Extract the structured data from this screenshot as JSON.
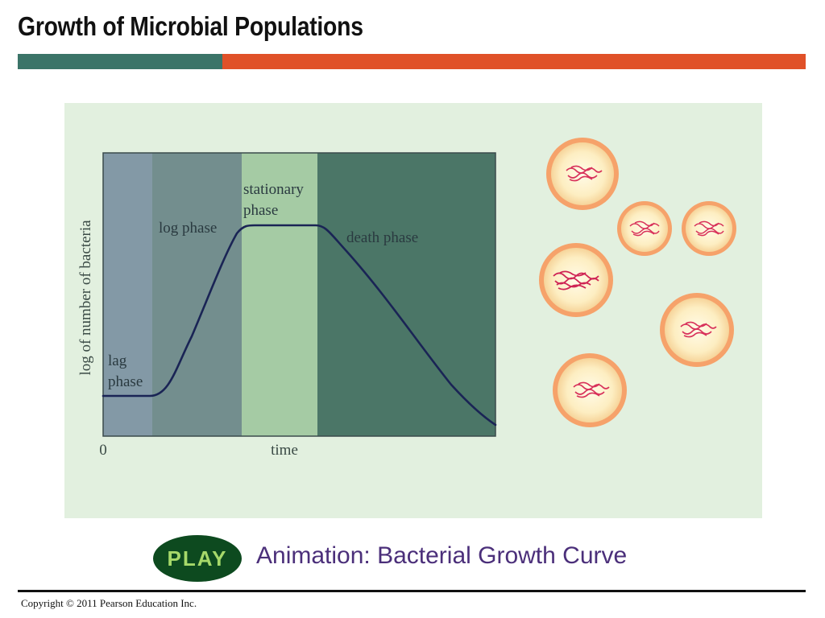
{
  "slide": {
    "title": "Growth of Microbial Populations",
    "animation_link": "Animation: Bacterial Growth Curve",
    "play_label": "PLAY",
    "copyright": "Copyright © 2011 Pearson Education Inc."
  },
  "colors": {
    "title_bar_teal": "#3b7468",
    "title_bar_orange": "#e05128",
    "panel_bg": "#e2f0df",
    "lag_region": "#8399a6",
    "log_region": "#738e8e",
    "stationary_region": "#a5cba4",
    "death_region": "#4b7667",
    "curve": "#1a2455",
    "play_bg": "#0d4a1f",
    "play_text": "#a6d96a",
    "link_text": "#4b2f7a"
  },
  "diagram": {
    "y_axis_label": "log of number of bacteria",
    "x_axis_label": "time",
    "origin_label": "0",
    "phases": [
      {
        "id": "lag",
        "lines": [
          "lag",
          "phase"
        ]
      },
      {
        "id": "log",
        "lines": [
          "log phase"
        ]
      },
      {
        "id": "stationary",
        "lines": [
          "stationary",
          "phase"
        ]
      },
      {
        "id": "death",
        "lines": [
          "death phase"
        ]
      }
    ],
    "cells": [
      {
        "name": "cell-1",
        "intensity": "medium"
      },
      {
        "name": "cell-2",
        "intensity": "medium"
      },
      {
        "name": "cell-3",
        "intensity": "medium"
      },
      {
        "name": "cell-4",
        "intensity": "high"
      },
      {
        "name": "cell-5",
        "intensity": "medium"
      },
      {
        "name": "cell-6",
        "intensity": "medium"
      }
    ]
  }
}
